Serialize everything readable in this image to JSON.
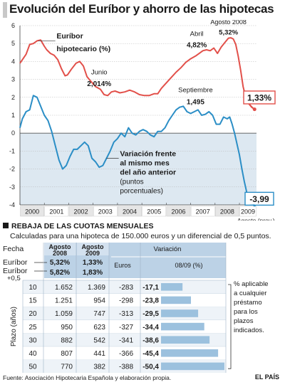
{
  "title": "Evolución del Euríbor y ahorro de las hipotecas",
  "chart_data": {
    "type": "line",
    "ylim": [
      -4,
      6
    ],
    "yticks": [
      "6",
      "5",
      "4",
      "3",
      "2",
      "1",
      "0",
      "-1",
      "-2",
      "-3",
      "-4"
    ],
    "x_ticks": [
      "2000",
      "2001",
      "2002",
      "2003",
      "2004",
      "2005",
      "2006",
      "2007",
      "2008",
      "2009"
    ],
    "x_extra_label": "Agosto (prov.)",
    "grid": true,
    "series": [
      {
        "name": "Euríbor hipotecario (%)",
        "color": "#e2504a",
        "x": [
          2000.0,
          2000.1,
          2000.25,
          2000.4,
          2000.55,
          2000.7,
          2000.85,
          2001.0,
          2001.1,
          2001.25,
          2001.4,
          2001.55,
          2001.7,
          2001.85,
          2001.95,
          2002.1,
          2002.3,
          2002.45,
          2002.6,
          2002.75,
          2002.9,
          2003.1,
          2003.3,
          2003.45,
          2003.6,
          2003.75,
          2003.9,
          2004.1,
          2004.3,
          2004.5,
          2004.7,
          2004.9,
          2005.1,
          2005.3,
          2005.5,
          2005.65,
          2005.8,
          2006.0,
          2006.2,
          2006.4,
          2006.6,
          2006.8,
          2007.0,
          2007.2,
          2007.35,
          2007.5,
          2007.65,
          2007.8,
          2007.95,
          2008.1,
          2008.25,
          2008.4,
          2008.55,
          2008.65,
          2008.75,
          2008.85,
          2008.95,
          2009.05,
          2009.15,
          2009.25,
          2009.35,
          2009.5,
          2009.62
        ],
        "values": [
          3.9,
          4.1,
          4.4,
          4.95,
          5.0,
          5.15,
          5.2,
          4.85,
          4.65,
          4.45,
          4.35,
          4.1,
          3.6,
          3.2,
          3.25,
          3.55,
          3.9,
          4.0,
          3.75,
          3.15,
          2.9,
          2.6,
          2.45,
          2.15,
          2.1,
          2.3,
          2.35,
          2.25,
          2.3,
          2.4,
          2.3,
          2.15,
          2.1,
          2.1,
          2.2,
          2.2,
          2.5,
          2.8,
          3.1,
          3.4,
          3.65,
          3.95,
          4.15,
          4.3,
          4.45,
          4.6,
          4.65,
          4.6,
          4.75,
          4.45,
          4.8,
          5.05,
          5.3,
          5.32,
          5.25,
          4.95,
          4.3,
          3.5,
          2.6,
          2.05,
          1.7,
          1.45,
          1.33
        ]
      },
      {
        "name": "Variación frente al mismo mes del año anterior (puntos porcentuales)",
        "color": "#2b8ec6",
        "x": [
          2000.0,
          2000.1,
          2000.25,
          2000.4,
          2000.55,
          2000.7,
          2000.85,
          2001.0,
          2001.15,
          2001.3,
          2001.45,
          2001.6,
          2001.75,
          2001.9,
          2002.05,
          2002.2,
          2002.35,
          2002.5,
          2002.65,
          2002.8,
          2002.95,
          2003.1,
          2003.25,
          2003.4,
          2003.55,
          2003.7,
          2003.85,
          2004.0,
          2004.15,
          2004.3,
          2004.45,
          2004.6,
          2004.75,
          2004.9,
          2005.05,
          2005.2,
          2005.35,
          2005.5,
          2005.65,
          2005.8,
          2005.95,
          2006.1,
          2006.25,
          2006.4,
          2006.55,
          2006.7,
          2006.85,
          2007.0,
          2007.15,
          2007.3,
          2007.45,
          2007.6,
          2007.75,
          2007.9,
          2008.05,
          2008.2,
          2008.35,
          2008.5,
          2008.6,
          2008.7,
          2008.8,
          2008.9,
          2009.0,
          2009.1,
          2009.2,
          2009.3,
          2009.4,
          2009.5,
          2009.62
        ],
        "values": [
          0.3,
          0.8,
          1.2,
          1.3,
          2.1,
          2.0,
          1.5,
          1.0,
          0.7,
          0.1,
          -0.7,
          -1.5,
          -2.0,
          -1.8,
          -1.3,
          -0.9,
          -0.9,
          -0.7,
          -0.5,
          -0.7,
          -1.4,
          -1.6,
          -1.9,
          -1.8,
          -1.4,
          -1.0,
          -0.5,
          -0.3,
          0.0,
          -0.2,
          0.3,
          0.0,
          -0.1,
          0.1,
          0.2,
          0.1,
          -0.1,
          -0.2,
          0.1,
          0.1,
          0.3,
          0.7,
          1.0,
          1.3,
          1.45,
          1.5,
          1.2,
          1.1,
          1.2,
          1.3,
          1.0,
          1.05,
          1.2,
          1.0,
          0.5,
          0.5,
          0.9,
          0.8,
          0.9,
          0.5,
          0.0,
          -0.6,
          -1.2,
          -2.0,
          -2.7,
          -3.3,
          -3.7,
          -3.9,
          -3.99
        ]
      }
    ],
    "annotations": {
      "euribor_label": [
        "Euríbor",
        "hipotecario (%)"
      ],
      "junio": [
        "Junio",
        "2,014%"
      ],
      "abril": [
        "Abril",
        "4,82%"
      ],
      "agosto": [
        "Agosto 2008",
        "5,32%"
      ],
      "septiembre": [
        "Septiembre",
        "1,495"
      ],
      "var_label": [
        "Variación frente",
        "al mismo mes",
        "del año anterior"
      ],
      "var_label_light": [
        "(puntos",
        "porcentuales)"
      ],
      "callout_top": "1,33%",
      "callout_bottom": "-3,99"
    }
  },
  "section": {
    "heading": "REBAJA DE LAS CUOTAS MENSUALES",
    "subheading": "Calculadas para una hipoteca de 150.000 euros y un diferencial de 0,5 puntos."
  },
  "table": {
    "fecha_label": "Fecha",
    "col1_header": [
      "Agosto",
      "2008"
    ],
    "col2_header": [
      "Agosto",
      "2009"
    ],
    "variacion_header": "Variación",
    "euros_header": "Euros",
    "pct_header": "08/09 (%)",
    "euribor_label": "Euríbor",
    "euribor_plus_label": [
      "Euríbor",
      "+0,5"
    ],
    "euribor_values": [
      "5,32%",
      "1,33%"
    ],
    "euribor_plus_values": [
      "5,82%",
      "1,83%"
    ],
    "plazo_label": "Plazo (años)",
    "rows": [
      {
        "plazo": "10",
        "a2008": "1.652",
        "a2009": "1.369",
        "euros": "-283",
        "pct": "-17,1",
        "pct_value": -17.1
      },
      {
        "plazo": "15",
        "a2008": "1.251",
        "a2009": "954",
        "euros": "-298",
        "pct": "-23,8",
        "pct_value": -23.8
      },
      {
        "plazo": "20",
        "a2008": "1.059",
        "a2009": "747",
        "euros": "-313",
        "pct": "-29,5",
        "pct_value": -29.5
      },
      {
        "plazo": "25",
        "a2008": "950",
        "a2009": "623",
        "euros": "-327",
        "pct": "-34,4",
        "pct_value": -34.4
      },
      {
        "plazo": "30",
        "a2008": "882",
        "a2009": "542",
        "euros": "-341",
        "pct": "-38,6",
        "pct_value": -38.6
      },
      {
        "plazo": "40",
        "a2008": "807",
        "a2009": "441",
        "euros": "-366",
        "pct": "-45,4",
        "pct_value": -45.4
      },
      {
        "plazo": "50",
        "a2008": "770",
        "a2009": "382",
        "euros": "-388",
        "pct": "-50,4",
        "pct_value": -50.4
      }
    ],
    "note": [
      "% aplicable",
      "a cualquier",
      "préstamo",
      "para los",
      "plazos",
      "indicados."
    ],
    "colors": {
      "header_bg": "#bcd2e6",
      "bar": "#9cc1de",
      "alt_row": "#eef3f8"
    }
  },
  "footer": {
    "source": "Fuente: Asociación Hipotecaria Española y elaboración propia.",
    "brand": "EL PAÍS"
  }
}
